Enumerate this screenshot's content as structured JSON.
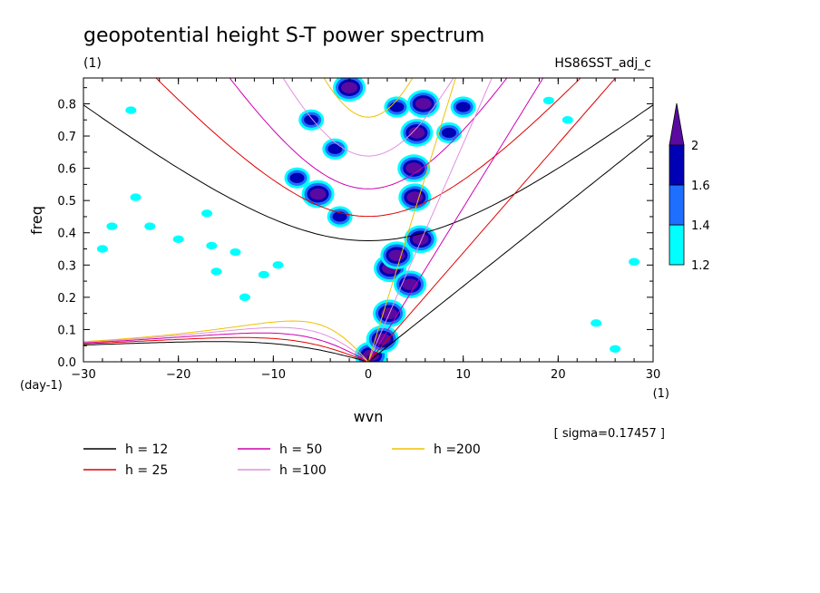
{
  "title": "geopotential height S-T power spectrum",
  "subtitle_left": "(1)",
  "subtitle_right": "HS86SST_adj_c",
  "sigma_note": "[ sigma=0.17457 ]",
  "chart_data": {
    "type": "heatmap",
    "xlabel": "wvn",
    "x_unit": "(1)",
    "ylabel": "freq",
    "y_unit": "(day-1)",
    "xlim": [
      -30,
      30
    ],
    "ylim": [
      0,
      0.88
    ],
    "x_ticks": [
      "-30",
      "-20",
      "-10",
      "0",
      "10",
      "20",
      "30"
    ],
    "y_ticks": [
      "0.0",
      "0.1",
      "0.2",
      "0.3",
      "0.4",
      "0.5",
      "0.6",
      "0.7",
      "0.8"
    ],
    "colorbar": {
      "levels": [
        "1.2",
        "1.4",
        "1.6",
        "2"
      ],
      "colors": [
        "#00ffff",
        "#1e6fff",
        "#0000b4",
        "#5a0aa0"
      ],
      "extend": "max"
    },
    "dispersion_curves": [
      {
        "name": "h = 12",
        "h": 12,
        "color": "#000000"
      },
      {
        "name": "h = 25",
        "h": 25,
        "color": "#e00000"
      },
      {
        "name": "h = 50",
        "h": 50,
        "color": "#d000b0"
      },
      {
        "name": "h =100",
        "h": 100,
        "color": "#e090e0"
      },
      {
        "name": "h =200",
        "h": 200,
        "color": "#f0c000"
      }
    ],
    "shaded_regions": [
      {
        "x": 0.3,
        "y": 0.02,
        "level": "2"
      },
      {
        "x": 1.5,
        "y": 0.07,
        "level": "2"
      },
      {
        "x": 2.2,
        "y": 0.15,
        "level": "2"
      },
      {
        "x": 2.3,
        "y": 0.29,
        "level": "2"
      },
      {
        "x": 3.0,
        "y": 0.33,
        "level": "2"
      },
      {
        "x": 4.4,
        "y": 0.24,
        "level": "2"
      },
      {
        "x": 5.5,
        "y": 0.38,
        "level": "2"
      },
      {
        "x": 4.9,
        "y": 0.51,
        "level": "2"
      },
      {
        "x": 4.8,
        "y": 0.6,
        "level": "2"
      },
      {
        "x": 5.1,
        "y": 0.71,
        "level": "2"
      },
      {
        "x": 5.8,
        "y": 0.8,
        "level": "2"
      },
      {
        "x": -2.0,
        "y": 0.85,
        "level": "2"
      },
      {
        "x": -5.3,
        "y": 0.52,
        "level": "2"
      },
      {
        "x": -3.0,
        "y": 0.45,
        "level": "1.6"
      },
      {
        "x": -3.5,
        "y": 0.66,
        "level": "1.6"
      },
      {
        "x": -6.0,
        "y": 0.75,
        "level": "1.6"
      },
      {
        "x": -7.5,
        "y": 0.57,
        "level": "1.6"
      },
      {
        "x": 8.5,
        "y": 0.71,
        "level": "1.6"
      },
      {
        "x": 10.0,
        "y": 0.79,
        "level": "1.6"
      },
      {
        "x": 3.0,
        "y": 0.79,
        "level": "1.6"
      },
      {
        "x": -25.0,
        "y": 0.78,
        "level": "1.2"
      },
      {
        "x": -24.5,
        "y": 0.51,
        "level": "1.2"
      },
      {
        "x": -23.0,
        "y": 0.42,
        "level": "1.2"
      },
      {
        "x": -20.0,
        "y": 0.38,
        "level": "1.2"
      },
      {
        "x": -16.0,
        "y": 0.28,
        "level": "1.2"
      },
      {
        "x": -13.0,
        "y": 0.2,
        "level": "1.2"
      },
      {
        "x": -11.0,
        "y": 0.27,
        "level": "1.2"
      },
      {
        "x": -17.0,
        "y": 0.46,
        "level": "1.2"
      },
      {
        "x": -28.0,
        "y": 0.35,
        "level": "1.2"
      },
      {
        "x": -27.0,
        "y": 0.42,
        "level": "1.2"
      },
      {
        "x": -16.5,
        "y": 0.36,
        "level": "1.2"
      },
      {
        "x": -9.5,
        "y": 0.3,
        "level": "1.2"
      },
      {
        "x": -14.0,
        "y": 0.34,
        "level": "1.2"
      },
      {
        "x": 19.0,
        "y": 0.81,
        "level": "1.2"
      },
      {
        "x": 21.0,
        "y": 0.75,
        "level": "1.2"
      },
      {
        "x": 26.0,
        "y": 0.04,
        "level": "1.2"
      },
      {
        "x": 28.0,
        "y": 0.31,
        "level": "1.2"
      },
      {
        "x": 24.0,
        "y": 0.12,
        "level": "1.2"
      }
    ]
  }
}
